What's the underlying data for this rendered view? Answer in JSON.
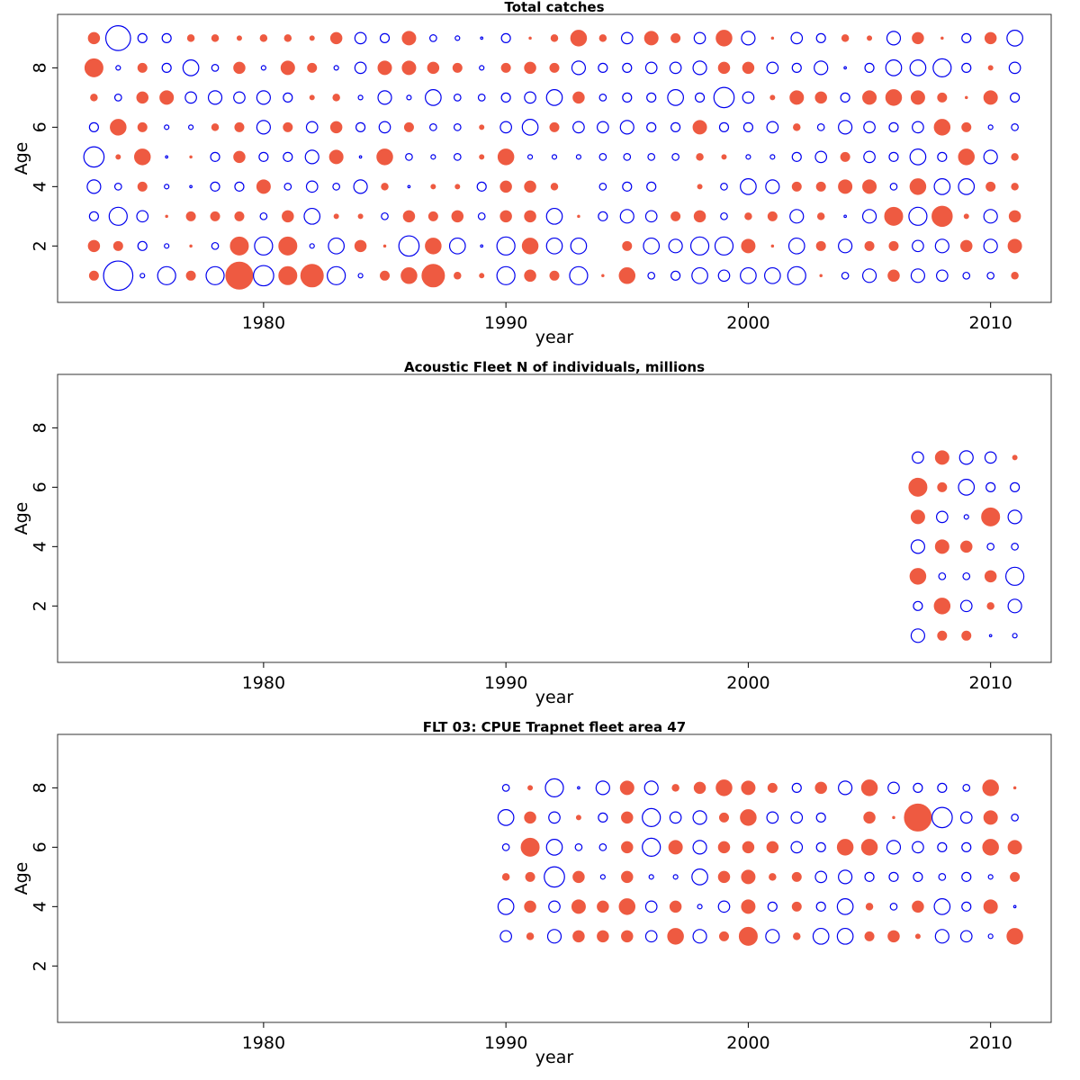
{
  "colors": {
    "positive": "#ee5a41",
    "negative": "#0000ee"
  },
  "chart_data": [
    {
      "type": "scatter",
      "subtype": "bubble",
      "title": "Total catches",
      "xlabel": "year",
      "ylabel": "Age",
      "xlim": [
        1971.5,
        2012.5
      ],
      "ylim": [
        0.1,
        9.8
      ],
      "xticks": [
        1980,
        1990,
        2000,
        2010
      ],
      "yticks": [
        2,
        4,
        6,
        8
      ],
      "x": [
        1973,
        1974,
        1975,
        1976,
        1977,
        1978,
        1979,
        1980,
        1981,
        1982,
        1983,
        1984,
        1985,
        1986,
        1987,
        1988,
        1989,
        1990,
        1991,
        1992,
        1993,
        1994,
        1995,
        1996,
        1997,
        1998,
        1999,
        2000,
        2001,
        2002,
        2003,
        2004,
        2005,
        2006,
        2007,
        2008,
        2009,
        2010,
        2011
      ],
      "ages": [
        1,
        2,
        3,
        4,
        5,
        6,
        7,
        8,
        9
      ],
      "values": [
        [
          4,
          -13,
          -2,
          -8,
          4,
          -8,
          12,
          -9,
          8,
          10,
          -8,
          -2,
          4,
          7,
          10,
          3,
          2,
          -8,
          5,
          4,
          -8,
          1,
          7,
          -3,
          -4,
          -7,
          -5,
          -7,
          -7,
          -8,
          1,
          -3,
          -6,
          5,
          -6,
          -5,
          -3,
          -3,
          3
        ],
        [
          5,
          4,
          -4,
          -2,
          1,
          -3,
          8,
          -8,
          8,
          -2,
          -7,
          5,
          1,
          -9,
          7,
          -7,
          -1,
          -8,
          7,
          -7,
          -7,
          0,
          4,
          -7,
          -6,
          -8,
          -8,
          6,
          1,
          -7,
          4,
          -6,
          4,
          4,
          -5,
          -6,
          5,
          -6,
          6
        ],
        [
          -4,
          -8,
          -5,
          1,
          4,
          4,
          4,
          -3,
          5,
          -7,
          2,
          2,
          -3,
          5,
          4,
          5,
          -3,
          5,
          5,
          -7,
          1,
          -4,
          -6,
          -5,
          4,
          5,
          -3,
          3,
          4,
          -6,
          3,
          -1,
          -6,
          8,
          -8,
          9,
          2,
          -6,
          5
        ],
        [
          -6,
          -3,
          4,
          -2,
          -1,
          -4,
          -4,
          6,
          -3,
          -5,
          -3,
          -6,
          3,
          -1,
          2,
          2,
          -4,
          5,
          5,
          3,
          0,
          -3,
          -4,
          -4,
          0,
          2,
          -3,
          -7,
          -6,
          4,
          4,
          6,
          6,
          -3,
          7,
          -7,
          -7,
          4,
          3
        ],
        [
          -9,
          2,
          7,
          -1,
          1,
          -4,
          5,
          -4,
          -4,
          -6,
          6,
          -1,
          7,
          -3,
          -2,
          -3,
          2,
          7,
          -2,
          -2,
          -2,
          -3,
          -3,
          -3,
          -3,
          3,
          2,
          -2,
          -2,
          -4,
          -5,
          4,
          -5,
          -4,
          -7,
          -4,
          7,
          -6,
          3
        ],
        [
          -4,
          7,
          4,
          -2,
          -2,
          3,
          4,
          -6,
          4,
          -5,
          5,
          -4,
          -5,
          4,
          -3,
          -3,
          2,
          -5,
          -7,
          4,
          -5,
          -5,
          -6,
          -4,
          -4,
          6,
          -4,
          -4,
          -5,
          3,
          -3,
          -6,
          -5,
          -4,
          -5,
          7,
          4,
          -2,
          -3
        ],
        [
          3,
          -3,
          5,
          6,
          -5,
          -6,
          -5,
          -6,
          -4,
          2,
          3,
          -2,
          -6,
          -2,
          -7,
          -3,
          -3,
          -4,
          -5,
          -7,
          5,
          -3,
          -4,
          -4,
          -7,
          -4,
          -9,
          -5,
          2,
          6,
          5,
          -4,
          6,
          7,
          6,
          4,
          1,
          6,
          -4
        ],
        [
          8,
          -2,
          4,
          -4,
          -7,
          -3,
          5,
          -2,
          6,
          4,
          -2,
          -5,
          6,
          6,
          5,
          4,
          -2,
          4,
          5,
          4,
          -6,
          -4,
          -4,
          -5,
          -5,
          -6,
          5,
          5,
          -5,
          -4,
          -6,
          -1,
          -4,
          -7,
          -7,
          -8,
          -4,
          2,
          -5
        ],
        [
          5,
          -11,
          -4,
          -4,
          3,
          3,
          2,
          3,
          3,
          2,
          5,
          -5,
          -4,
          6,
          -3,
          -2,
          -1,
          -4,
          1,
          3,
          7,
          3,
          -5,
          6,
          4,
          -5,
          7,
          -6,
          1,
          -5,
          -4,
          3,
          2,
          -6,
          5,
          1,
          -4,
          5,
          -7
        ]
      ]
    },
    {
      "type": "scatter",
      "subtype": "bubble",
      "title": "Acoustic Fleet  N of individuals, millions",
      "xlabel": "year",
      "ylabel": "Age",
      "xlim": [
        1971.5,
        2012.5
      ],
      "ylim": [
        0.1,
        9.8
      ],
      "xticks": [
        1980,
        1990,
        2000,
        2010
      ],
      "yticks": [
        2,
        4,
        6,
        8
      ],
      "x": [
        2007,
        2008,
        2009,
        2010,
        2011
      ],
      "ages": [
        1,
        2,
        3,
        4,
        5,
        6,
        7
      ],
      "values": [
        [
          -6,
          4,
          4,
          -1,
          -2
        ],
        [
          -4,
          7,
          -5,
          3,
          -6
        ],
        [
          7,
          -3,
          -3,
          5,
          -8
        ],
        [
          -6,
          6,
          5,
          -3,
          -3
        ],
        [
          6,
          -5,
          -2,
          8,
          -6
        ],
        [
          8,
          4,
          -7,
          -4,
          -4
        ],
        [
          -5,
          6,
          -6,
          -5,
          2
        ]
      ]
    },
    {
      "type": "scatter",
      "subtype": "bubble",
      "title": "FLT 03: CPUE Trapnet fleet area 47",
      "xlabel": "year",
      "ylabel": "Age",
      "xlim": [
        1971.5,
        2012.5
      ],
      "ylim": [
        0.1,
        9.8
      ],
      "xticks": [
        1980,
        1990,
        2000,
        2010
      ],
      "yticks": [
        2,
        4,
        6,
        8
      ],
      "x": [
        1990,
        1991,
        1992,
        1993,
        1994,
        1995,
        1996,
        1997,
        1998,
        1999,
        2000,
        2001,
        2002,
        2003,
        2004,
        2005,
        2006,
        2007,
        2008,
        2009,
        2010,
        2011
      ],
      "ages": [
        3,
        4,
        5,
        6,
        7,
        8
      ],
      "values": [
        [
          -5,
          3,
          -6,
          5,
          5,
          5,
          -5,
          7,
          -6,
          4,
          8,
          -6,
          3,
          -7,
          -7,
          4,
          5,
          2,
          -6,
          -5,
          -2,
          7
        ],
        [
          -7,
          5,
          -5,
          6,
          5,
          7,
          -5,
          5,
          -2,
          -5,
          6,
          -4,
          4,
          -4,
          -7,
          3,
          -3,
          5,
          -7,
          -4,
          6,
          -1
        ],
        [
          3,
          4,
          -9,
          5,
          -2,
          5,
          -2,
          -2,
          -7,
          5,
          6,
          3,
          4,
          -5,
          -6,
          -4,
          -4,
          -4,
          -3,
          -4,
          -2,
          4
        ],
        [
          -3,
          8,
          -7,
          -3,
          -3,
          5,
          -8,
          6,
          -6,
          5,
          5,
          5,
          -5,
          -4,
          7,
          7,
          -6,
          -5,
          -4,
          -4,
          7,
          6
        ],
        [
          -7,
          5,
          -5,
          2,
          -4,
          5,
          -8,
          -5,
          -6,
          4,
          7,
          -5,
          -5,
          -4,
          0,
          5,
          1,
          12,
          -9,
          -5,
          6,
          -3
        ],
        [
          -3,
          2,
          -8,
          -1,
          -6,
          6,
          -6,
          3,
          5,
          7,
          6,
          4,
          -4,
          5,
          -6,
          7,
          -5,
          -4,
          -4,
          -3,
          7,
          1
        ]
      ]
    }
  ]
}
